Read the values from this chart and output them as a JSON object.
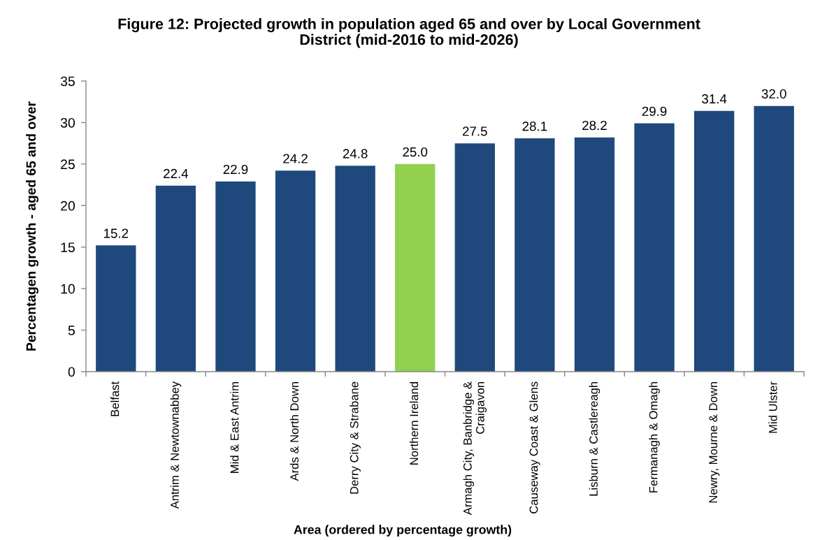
{
  "chart_data": {
    "type": "bar",
    "title": "Figure 12: Projected growth in population aged 65 and over by Local Government\nDistrict (mid-2016 to mid-2026)",
    "xlabel": "Area (ordered by percentage growth)",
    "ylabel": "Percentagen growth - aged 65 and over",
    "categories": [
      "Belfast",
      "Antrim & Newtownabbey",
      "Mid & East Antrim",
      "Ards & North Down",
      "Derry City & Strabane",
      "Northern Ireland",
      "Armagh City, Banbridge &\nCraigavon",
      "Causeway Coast & Glens",
      "Lisburn & Castlereagh",
      "Fermanagh & Omagh",
      "Newry, Mourne & Down",
      "Mid Ulster"
    ],
    "values": [
      15.2,
      22.4,
      22.9,
      24.2,
      24.8,
      25.0,
      27.5,
      28.1,
      28.2,
      29.9,
      31.4,
      32.0
    ],
    "value_labels": [
      "15.2",
      "22.4",
      "22.9",
      "24.2",
      "24.8",
      "25.0",
      "27.5",
      "28.1",
      "28.2",
      "29.9",
      "31.4",
      "32.0"
    ],
    "colors": [
      "#1f497d",
      "#1f497d",
      "#1f497d",
      "#1f497d",
      "#1f497d",
      "#92d050",
      "#1f497d",
      "#1f497d",
      "#1f497d",
      "#1f497d",
      "#1f497d",
      "#1f497d"
    ],
    "ylim": [
      0,
      35
    ],
    "yticks": [
      0,
      5,
      10,
      15,
      20,
      25,
      30,
      35
    ]
  }
}
